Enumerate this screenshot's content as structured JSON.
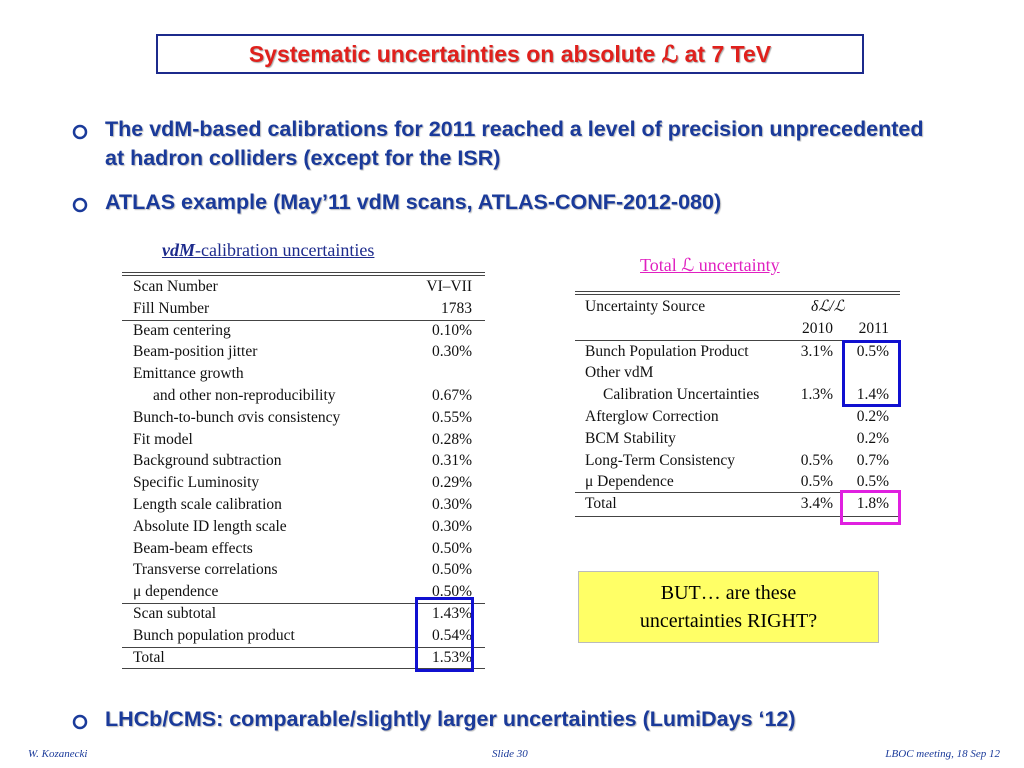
{
  "title": "Systematic uncertainties on absolute ℒ at 7 TeV",
  "bullets": [
    "The vdM-based calibrations for 2011 reached a level of precision unprecedented at hadron colliders (except for the ISR)",
    "ATLAS example (May’11 vdM scans, ATLAS-CONF-2012-080)"
  ],
  "bottom_bullet": "LHCb/CMS: comparable/slightly larger uncertainties (LumiDays ‘12)",
  "left_table": {
    "caption_em": "vdM",
    "caption_rest": "-calibration uncertainties",
    "rows": [
      {
        "label": "Scan Number",
        "value": "VI–VII"
      },
      {
        "label": "Fill Number",
        "value": "1783"
      },
      {
        "label": "Beam centering",
        "value": "0.10%"
      },
      {
        "label": "Beam-position jitter",
        "value": "0.30%"
      },
      {
        "label": "Emittance growth"
      },
      {
        "label": "and other non-reproducibility",
        "value": "0.67%"
      },
      {
        "label": "Bunch-to-bunch σvis consistency",
        "value": "0.55%"
      },
      {
        "label": "Fit model",
        "value": "0.28%"
      },
      {
        "label": "Background subtraction",
        "value": "0.31%"
      },
      {
        "label": "Specific Luminosity",
        "value": "0.29%"
      },
      {
        "label": "Length scale calibration",
        "value": "0.30%"
      },
      {
        "label": "Absolute ID length scale",
        "value": "0.30%"
      },
      {
        "label": "Beam-beam effects",
        "value": "0.50%"
      },
      {
        "label": "Transverse correlations",
        "value": "0.50%"
      },
      {
        "label": "μ dependence",
        "value": "0.50%"
      },
      {
        "label": "Scan subtotal",
        "value": "1.43%"
      },
      {
        "label": "Bunch population product",
        "value": "0.54%"
      },
      {
        "label": "Total",
        "value": "1.53%"
      }
    ]
  },
  "right_table": {
    "caption": "Total ℒ uncertainty",
    "header": {
      "source": "Uncertainty Source",
      "quantity": "δℒ/ℒ",
      "y2010": "2010",
      "y2011": "2011"
    },
    "rows": [
      {
        "source": "Bunch Population Product",
        "y2010": "3.1%",
        "y2011": "0.5%"
      },
      {
        "source": "Other vdM"
      },
      {
        "source": "Calibration Uncertainties",
        "y2010": "1.3%",
        "y2011": "1.4%"
      },
      {
        "source": "Afterglow Correction",
        "y2011": "0.2%"
      },
      {
        "source": "BCM Stability",
        "y2011": "0.2%"
      },
      {
        "source": "Long-Term Consistency",
        "y2010": "0.5%",
        "y2011": "0.7%"
      },
      {
        "source": "μ Dependence",
        "y2010": "0.5%",
        "y2011": "0.5%"
      },
      {
        "source": "Total",
        "y2010": "3.4%",
        "y2011": "1.8%"
      }
    ]
  },
  "callout": [
    "BUT… are these",
    "uncertainties RIGHT?"
  ],
  "footer": {
    "author": "W. Kozanecki",
    "slide": "Slide 30",
    "event": "LBOC meeting, 18 Sep 12"
  }
}
